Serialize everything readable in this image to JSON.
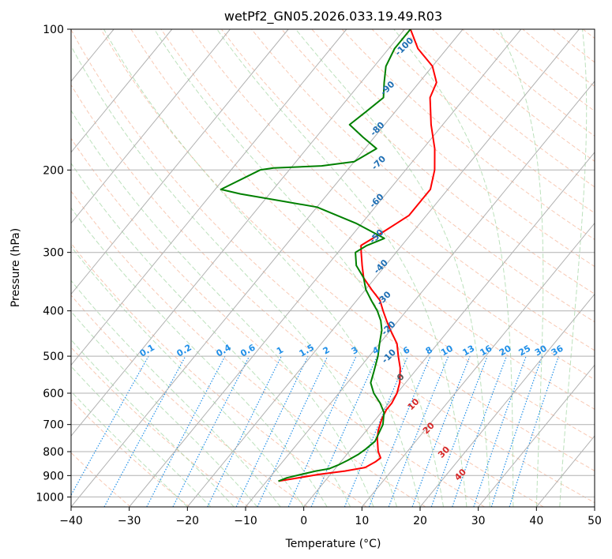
{
  "chart_data": {
    "type": "line",
    "title": "wetPf2_GN05.2026.033.19.49.R03",
    "xlabel": "Temperature (°C)",
    "ylabel": "Pressure (hPa)",
    "xlim": [
      -40,
      50
    ],
    "ylim": [
      1050,
      100
    ],
    "y_scale": "log",
    "x_ticks": [
      -40,
      -30,
      -20,
      -10,
      0,
      10,
      20,
      30,
      40,
      50
    ],
    "y_ticks": [
      100,
      200,
      300,
      400,
      500,
      600,
      700,
      800,
      900,
      1000
    ],
    "grid": true,
    "skew_t": true,
    "colors": {
      "temperature": "#ff0000",
      "dewpoint": "#008000",
      "isotherm": "#b0b0b0",
      "dry_adiabat": "#f4a582",
      "moist_adiabat": "#9fd49f",
      "mixing_ratio": "#1f8fe8",
      "label_blue": "#1f6fb4",
      "label_red": "#d62728"
    },
    "series": [
      {
        "name": "",
        "color": "#ff0000",
        "points": [
          [
            -8,
            925
          ],
          [
            -6,
            915
          ],
          [
            -2,
            895
          ],
          [
            2,
            880
          ],
          [
            5,
            865
          ],
          [
            6,
            840
          ],
          [
            6.3,
            825
          ],
          [
            5,
            800
          ],
          [
            3,
            750
          ],
          [
            2,
            720
          ],
          [
            1,
            680
          ],
          [
            0.5,
            650
          ],
          [
            0.5,
            630
          ],
          [
            0,
            600
          ],
          [
            -1,
            570
          ],
          [
            -3,
            530
          ],
          [
            -5,
            500
          ],
          [
            -7,
            470
          ],
          [
            -10,
            440
          ],
          [
            -12,
            420
          ],
          [
            -14,
            400
          ],
          [
            -16,
            380
          ],
          [
            -19,
            360
          ],
          [
            -22,
            340
          ],
          [
            -24,
            320
          ],
          [
            -26,
            300
          ],
          [
            -27,
            290
          ],
          [
            -26,
            280
          ],
          [
            -25,
            270
          ],
          [
            -24,
            260
          ],
          [
            -23,
            250
          ],
          [
            -23,
            240
          ],
          [
            -23,
            230
          ],
          [
            -23,
            220
          ],
          [
            -25,
            200
          ],
          [
            -28,
            180
          ],
          [
            -32,
            160
          ],
          [
            -36,
            140
          ],
          [
            -37,
            130
          ],
          [
            -40,
            120
          ],
          [
            -45,
            110
          ],
          [
            -49,
            100
          ]
        ]
      },
      {
        "name": "",
        "color": "#008000",
        "points": [
          [
            -8,
            925
          ],
          [
            -7,
            910
          ],
          [
            -5,
            895
          ],
          [
            -3,
            880
          ],
          [
            -1,
            870
          ],
          [
            0,
            855
          ],
          [
            1,
            835
          ],
          [
            2,
            810
          ],
          [
            2.5,
            790
          ],
          [
            3,
            760
          ],
          [
            2.5,
            730
          ],
          [
            2,
            700
          ],
          [
            0.5,
            660
          ],
          [
            -1.5,
            630
          ],
          [
            -4,
            600
          ],
          [
            -6,
            570
          ],
          [
            -7,
            540
          ],
          [
            -8.5,
            500
          ],
          [
            -10,
            470
          ],
          [
            -11.5,
            440
          ],
          [
            -13,
            420
          ],
          [
            -15,
            400
          ],
          [
            -17.5,
            380
          ],
          [
            -20,
            360
          ],
          [
            -22,
            340
          ],
          [
            -25,
            320
          ],
          [
            -27,
            300
          ],
          [
            -26,
            290
          ],
          [
            -24,
            280
          ],
          [
            -31,
            260
          ],
          [
            -40,
            240
          ],
          [
            -55,
            225
          ],
          [
            -59,
            220
          ],
          [
            -55,
            200
          ],
          [
            -53,
            198
          ],
          [
            -45,
            196
          ],
          [
            -40,
            192
          ],
          [
            -38,
            180
          ],
          [
            -42,
            170
          ],
          [
            -46,
            160
          ],
          [
            -45,
            150
          ],
          [
            -44,
            140
          ],
          [
            -46,
            130
          ],
          [
            -48,
            120
          ],
          [
            -49,
            110
          ],
          [
            -49,
            100
          ]
        ]
      }
    ],
    "mixing_ratio_labels": [
      "0.1",
      "0.2",
      "0.4",
      "0.6",
      "1",
      "1.5",
      "2",
      "3",
      "4",
      "6",
      "8",
      "10",
      "13",
      "16",
      "20",
      "25",
      "30",
      "36"
    ],
    "mixing_ratio_values": [
      0.1,
      0.2,
      0.4,
      0.6,
      1,
      1.5,
      2,
      3,
      4,
      6,
      8,
      10,
      13,
      16,
      20,
      25,
      30,
      36
    ],
    "moist_adiabat_labels": [
      {
        "text": "-100",
        "temp": -47,
        "p": 110,
        "color": "#1f6fb4"
      },
      {
        "text": "-90",
        "temp": -44,
        "p": 135,
        "color": "#1f6fb4"
      },
      {
        "text": "-80",
        "temp": -40,
        "p": 165,
        "color": "#1f6fb4"
      },
      {
        "text": "-70",
        "temp": -35,
        "p": 195,
        "color": "#1f6fb4"
      },
      {
        "text": "-60",
        "temp": -30,
        "p": 235,
        "color": "#1f6fb4"
      },
      {
        "text": "-50",
        "temp": -25,
        "p": 280,
        "color": "#1f6fb4"
      },
      {
        "text": "-40",
        "temp": -20,
        "p": 325,
        "color": "#1f6fb4"
      },
      {
        "text": "-30",
        "temp": -15,
        "p": 380,
        "color": "#1f6fb4"
      },
      {
        "text": "-20",
        "temp": -10,
        "p": 440,
        "color": "#1f6fb4"
      },
      {
        "text": "-10",
        "temp": -6,
        "p": 505,
        "color": "#1f6fb4"
      },
      {
        "text": "0",
        "temp": -1,
        "p": 560,
        "color": "#555555"
      },
      {
        "text": "10",
        "temp": 5,
        "p": 640,
        "color": "#d62728"
      },
      {
        "text": "20",
        "temp": 11,
        "p": 720,
        "color": "#d62728"
      },
      {
        "text": "30",
        "temp": 17,
        "p": 810,
        "color": "#d62728"
      },
      {
        "text": "40",
        "temp": 23,
        "p": 905,
        "color": "#d62728"
      }
    ]
  }
}
